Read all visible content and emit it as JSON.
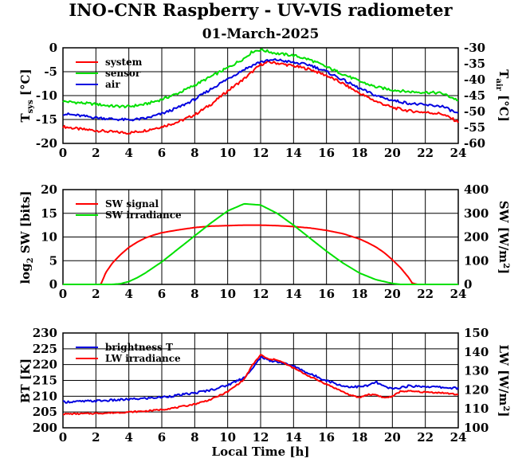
{
  "title": "INO-CNR Raspberry - UV-VIS radiometer",
  "subtitle": "01-March-2025",
  "colors": {
    "red": "#ff0000",
    "green": "#00e000",
    "blue": "#0000e0",
    "grid": "#000000"
  },
  "chart_data": [
    {
      "type": "line",
      "ylabel_left": "T_sys [°C]",
      "ylabel_right": "T_air [°C]",
      "xlim": [
        0,
        24
      ],
      "ylim_left": [
        -20,
        0
      ],
      "ylim_right": [
        -60,
        -30
      ],
      "x_ticks": [
        0,
        2,
        4,
        6,
        8,
        10,
        12,
        14,
        16,
        18,
        20,
        22,
        24
      ],
      "y_ticks_left": [
        -20,
        -15,
        -10,
        -5,
        0
      ],
      "y_ticks_right": [
        -60,
        -55,
        -50,
        -45,
        -40,
        -35,
        -30
      ],
      "grid": true,
      "legend": "top-left",
      "series": [
        {
          "name": "system",
          "color": "red",
          "axis": "left",
          "x": [
            0,
            1,
            2,
            3,
            4,
            5,
            6,
            7,
            8,
            9,
            10,
            11,
            12,
            12.5,
            13,
            14,
            15,
            16,
            17,
            18,
            19,
            20,
            21,
            22,
            23,
            24
          ],
          "y": [
            -16.5,
            -17,
            -17.3,
            -17.6,
            -17.8,
            -17.3,
            -16.5,
            -15.5,
            -14,
            -11.8,
            -9,
            -6.5,
            -3.5,
            -3,
            -3.2,
            -3.8,
            -4.5,
            -5.8,
            -7.5,
            -9.5,
            -11.2,
            -12.5,
            -13.2,
            -13.5,
            -13.8,
            -15.5
          ]
        },
        {
          "name": "sensor",
          "color": "green",
          "axis": "left",
          "x": [
            0,
            1,
            2,
            3,
            4,
            5,
            6,
            7,
            8,
            9,
            10,
            11,
            11.5,
            12,
            13,
            14,
            15,
            16,
            17,
            18,
            19,
            20,
            21,
            22,
            23,
            24
          ],
          "y": [
            -11.2,
            -11.5,
            -11.8,
            -12.2,
            -12.3,
            -11.8,
            -10.8,
            -9.5,
            -7.8,
            -6,
            -4.2,
            -2.2,
            -0.8,
            -0.4,
            -1.2,
            -1.6,
            -2.5,
            -4,
            -5.5,
            -7,
            -8.2,
            -8.8,
            -9.2,
            -9.3,
            -9.5,
            -11
          ]
        },
        {
          "name": "air",
          "color": "blue",
          "axis": "left",
          "x": [
            0,
            1,
            2,
            3,
            4,
            5,
            6,
            7,
            8,
            9,
            10,
            11,
            12,
            13,
            14,
            15,
            16,
            17,
            18,
            19,
            20,
            21,
            22,
            23,
            24
          ],
          "y": [
            -13.8,
            -14.2,
            -14.6,
            -14.9,
            -15.1,
            -14.8,
            -13.8,
            -12.5,
            -10.8,
            -8.6,
            -6.5,
            -4.5,
            -2.9,
            -2.5,
            -3.1,
            -3.6,
            -5,
            -6.7,
            -8.5,
            -10,
            -11,
            -11.6,
            -12,
            -12.2,
            -13.8
          ]
        }
      ]
    },
    {
      "type": "line",
      "ylabel_left": "log2 SW [bits]",
      "ylabel_right": "SW [W/m²]",
      "xlim": [
        0,
        24
      ],
      "ylim_left": [
        0,
        20
      ],
      "ylim_right": [
        0,
        400
      ],
      "x_ticks": [
        0,
        2,
        4,
        6,
        8,
        10,
        12,
        14,
        16,
        18,
        20,
        22,
        24
      ],
      "y_ticks_left": [
        0,
        5,
        10,
        15,
        20
      ],
      "y_ticks_right": [
        0,
        100,
        200,
        300,
        400
      ],
      "grid": true,
      "legend": "top-left",
      "series": [
        {
          "name": "SW signal",
          "color": "red",
          "axis": "left",
          "x": [
            0,
            2,
            2.3,
            2.6,
            3,
            3.5,
            4,
            4.5,
            5,
            5.5,
            6,
            7,
            8,
            9,
            10,
            11,
            12,
            13,
            14,
            15,
            16,
            17,
            18,
            18.5,
            19,
            19.5,
            20,
            20.5,
            21,
            21.2,
            21.5,
            24
          ],
          "y": [
            0,
            0,
            0,
            2.5,
            4.5,
            6.3,
            7.8,
            8.9,
            9.8,
            10.4,
            10.9,
            11.5,
            12,
            12.3,
            12.4,
            12.5,
            12.5,
            12.4,
            12.2,
            11.9,
            11.4,
            10.7,
            9.6,
            8.8,
            7.9,
            6.7,
            5.2,
            3.5,
            1.4,
            0.3,
            0,
            0
          ]
        },
        {
          "name": "SW irradiance",
          "color": "green",
          "axis": "right",
          "x": [
            0,
            3,
            3.5,
            4,
            4.5,
            5,
            6,
            7,
            8,
            9,
            10,
            11,
            12,
            13,
            14,
            15,
            16,
            17,
            18,
            19,
            20,
            20.5,
            21,
            24
          ],
          "y": [
            0,
            0,
            3,
            12,
            28,
            48,
            95,
            150,
            205,
            260,
            310,
            340,
            335,
            300,
            250,
            195,
            140,
            90,
            48,
            20,
            4,
            0,
            0,
            0
          ]
        }
      ]
    },
    {
      "type": "line",
      "xlabel": "Local Time [h]",
      "ylabel_left": "BT [K]",
      "ylabel_right": "LW [W/m²]",
      "xlim": [
        0,
        24
      ],
      "ylim_left": [
        200,
        230
      ],
      "ylim_right": [
        100,
        150
      ],
      "x_ticks": [
        0,
        2,
        4,
        6,
        8,
        10,
        12,
        14,
        16,
        18,
        20,
        22,
        24
      ],
      "y_ticks_left": [
        200,
        205,
        210,
        215,
        220,
        225,
        230
      ],
      "y_ticks_right": [
        100,
        110,
        120,
        130,
        140,
        150
      ],
      "grid": true,
      "legend": "top-left",
      "series": [
        {
          "name": "brightness T",
          "color": "blue",
          "axis": "left",
          "x": [
            0,
            1,
            2,
            3,
            4,
            5,
            6,
            7,
            8,
            9,
            10,
            11,
            11.5,
            12,
            12.5,
            13,
            14,
            15,
            16,
            17,
            17.5,
            18,
            18.5,
            19,
            19.5,
            20,
            21,
            22,
            23,
            24
          ],
          "y": [
            208.2,
            208.3,
            208.5,
            208.7,
            209,
            209.3,
            209.7,
            210.3,
            211,
            212,
            213.5,
            216,
            218.5,
            222.5,
            221.3,
            221,
            219.5,
            217,
            215,
            213.2,
            213,
            213,
            213.3,
            214.5,
            213,
            212.3,
            213.2,
            213.1,
            212.8,
            212.5
          ]
        },
        {
          "name": "LW irradiance",
          "color": "red",
          "axis": "right",
          "x": [
            0,
            1,
            2,
            3,
            4,
            5,
            6,
            7,
            8,
            9,
            10,
            11,
            11.5,
            12,
            12.5,
            13,
            14,
            15,
            16,
            17,
            17.5,
            18,
            18.5,
            19,
            19.5,
            20,
            20.5,
            21,
            22,
            23,
            24
          ],
          "y": [
            107.3,
            107.4,
            107.6,
            107.9,
            108.3,
            108.8,
            109.6,
            110.8,
            112.5,
            115,
            119,
            125.5,
            133,
            138.5,
            136,
            136,
            131.5,
            127,
            123,
            119,
            117,
            116,
            117.5,
            117.5,
            115.8,
            116.5,
            119.3,
            119.3,
            118.8,
            118.5,
            117.5
          ]
        }
      ]
    }
  ]
}
